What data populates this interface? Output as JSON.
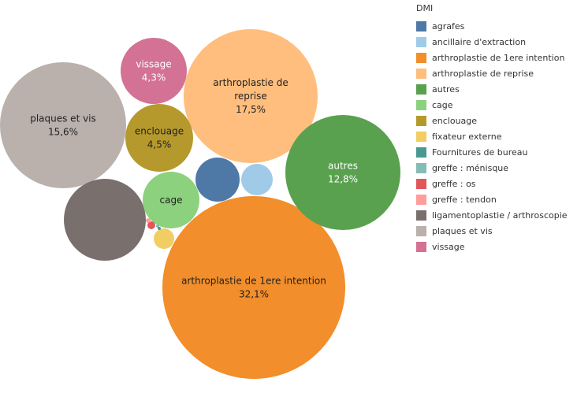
{
  "chart_data": {
    "type": "bubble",
    "legend": {
      "title": "DMI",
      "placement": "right",
      "items": [
        {
          "name": "agrafes",
          "color": "#4e79a7"
        },
        {
          "name": "ancillaire d'extraction",
          "color": "#a0cbe8"
        },
        {
          "name": "arthroplastie de 1ere intention",
          "color": "#f28e2b"
        },
        {
          "name": "arthroplastie de reprise",
          "color": "#ffbe7d"
        },
        {
          "name": "autres",
          "color": "#59a14f"
        },
        {
          "name": "cage",
          "color": "#8cd17d"
        },
        {
          "name": "enclouage",
          "color": "#b6992d"
        },
        {
          "name": "fixateur externe",
          "color": "#f1ce63"
        },
        {
          "name": "Fournitures de bureau",
          "color": "#499894"
        },
        {
          "name": "greffe : ménisque",
          "color": "#86bcb6"
        },
        {
          "name": "greffe : os",
          "color": "#e15759"
        },
        {
          "name": "greffe : tendon",
          "color": "#ff9d9a"
        },
        {
          "name": "ligamentoplastie / arthroscopie",
          "color": "#79706e"
        },
        {
          "name": "plaques et vis",
          "color": "#bab0ac"
        },
        {
          "name": "vissage",
          "color": "#d37295"
        }
      ]
    },
    "bubbles": [
      {
        "category": "arthroplastie de 1ere intention",
        "label": "arthroplastie de 1ere intention",
        "pct_label": "32,1%",
        "value": 32.1,
        "color": "#f28e2b",
        "text_color": "#222222"
      },
      {
        "category": "arthroplastie de reprise",
        "label": "arthroplastie de reprise",
        "pct_label": "17,5%",
        "value": 17.5,
        "color": "#ffbe7d",
        "text_color": "#222222"
      },
      {
        "category": "plaques et vis",
        "label": "plaques et vis",
        "pct_label": "15,6%",
        "value": 15.6,
        "color": "#bab0ac",
        "text_color": "#222222"
      },
      {
        "category": "autres",
        "label": "autres",
        "pct_label": "12,8%",
        "value": 12.8,
        "color": "#59a14f",
        "text_color": "#ffffff"
      },
      {
        "category": "ligamentoplastie / arthroscopie",
        "label": "",
        "pct_label": "",
        "value": 6.5,
        "color": "#79706e",
        "text_color": "#ffffff"
      },
      {
        "category": "enclouage",
        "label": "enclouage",
        "pct_label": "4,5%",
        "value": 4.5,
        "color": "#b6992d",
        "text_color": "#222222"
      },
      {
        "category": "vissage",
        "label": "vissage",
        "pct_label": "4,3%",
        "value": 4.3,
        "color": "#d37295",
        "text_color": "#ffffff"
      },
      {
        "category": "cage",
        "label": "cage",
        "pct_label": "",
        "value": 3.1,
        "color": "#8cd17d",
        "text_color": "#222222"
      },
      {
        "category": "agrafes",
        "label": "",
        "pct_label": "",
        "value": 1.9,
        "color": "#4e79a7",
        "text_color": "#ffffff"
      },
      {
        "category": "ancillaire d'extraction",
        "label": "",
        "pct_label": "",
        "value": 1.0,
        "color": "#a0cbe8",
        "text_color": "#222222"
      },
      {
        "category": "fixateur externe",
        "label": "",
        "pct_label": "",
        "value": 0.42,
        "color": "#f1ce63",
        "text_color": "#222222"
      },
      {
        "category": "greffe : os",
        "label": "",
        "pct_label": "",
        "value": 0.065,
        "color": "#e15759",
        "text_color": "#222222"
      },
      {
        "category": "greffe : tendon",
        "label": "",
        "pct_label": "",
        "value": 0.015,
        "color": "#ff9d9a",
        "text_color": "#222222"
      },
      {
        "category": "greffe : ménisque",
        "label": "",
        "pct_label": "",
        "value": 0.006,
        "color": "#86bcb6",
        "text_color": "#222222"
      },
      {
        "category": "Fournitures de bureau",
        "label": "",
        "pct_label": "",
        "value": 0.005,
        "color": "#499894",
        "text_color": "#222222"
      }
    ]
  }
}
